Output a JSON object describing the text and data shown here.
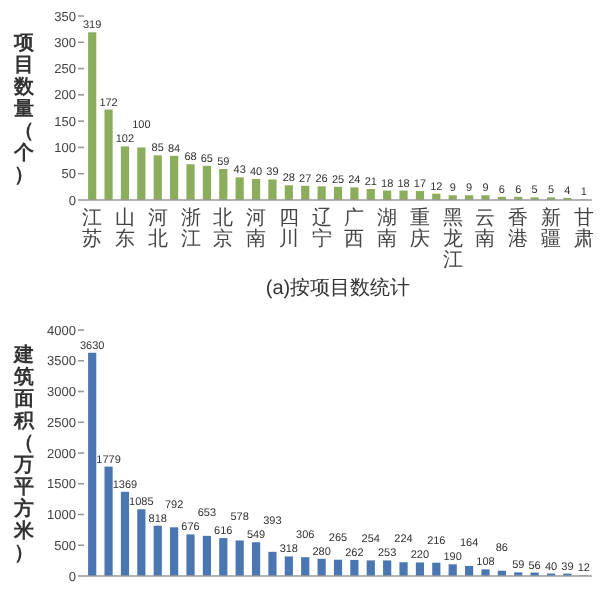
{
  "chart_data": [
    {
      "type": "bar",
      "title": "(a)按项目数统计",
      "ylabel": "项目数量（个）",
      "categories": [
        "江苏",
        null,
        "山东",
        null,
        "河北",
        null,
        "浙江",
        null,
        "北京",
        null,
        "河南",
        null,
        "四川",
        null,
        "辽宁",
        null,
        "广西",
        null,
        "湖南",
        null,
        "重庆",
        null,
        "黑龙江",
        null,
        "云南",
        null,
        "香港",
        null,
        "新疆",
        null,
        "甘肃"
      ],
      "values": [
        319,
        172,
        102,
        100,
        85,
        84,
        68,
        65,
        59,
        43,
        40,
        39,
        28,
        27,
        26,
        25,
        24,
        21,
        18,
        18,
        17,
        12,
        9,
        9,
        9,
        6,
        6,
        5,
        5,
        4,
        1
      ],
      "color": "#8bad5c",
      "ylim": [
        0,
        350
      ],
      "yticks": [
        0,
        50,
        100,
        150,
        200,
        250,
        300,
        350
      ],
      "data_labels": true
    },
    {
      "type": "bar",
      "ylabel": "建筑面积（万平方米）",
      "categories": [
        null,
        null,
        null,
        null,
        null,
        null,
        null,
        null,
        null,
        null,
        null,
        null,
        null,
        null,
        null,
        null,
        null,
        null,
        null,
        null,
        null,
        null,
        null,
        null,
        null,
        null,
        null,
        null,
        null,
        null,
        null
      ],
      "values": [
        3630,
        1779,
        1369,
        1085,
        818,
        792,
        676,
        653,
        616,
        578,
        549,
        393,
        318,
        306,
        280,
        265,
        262,
        254,
        253,
        224,
        220,
        216,
        190,
        164,
        108,
        86,
        59,
        56,
        40,
        39,
        12
      ],
      "color": "#4a76b2",
      "ylim": [
        0,
        4000
      ],
      "yticks": [
        0,
        500,
        1000,
        1500,
        2000,
        2500,
        3000,
        3500,
        4000
      ],
      "data_labels": true
    }
  ]
}
